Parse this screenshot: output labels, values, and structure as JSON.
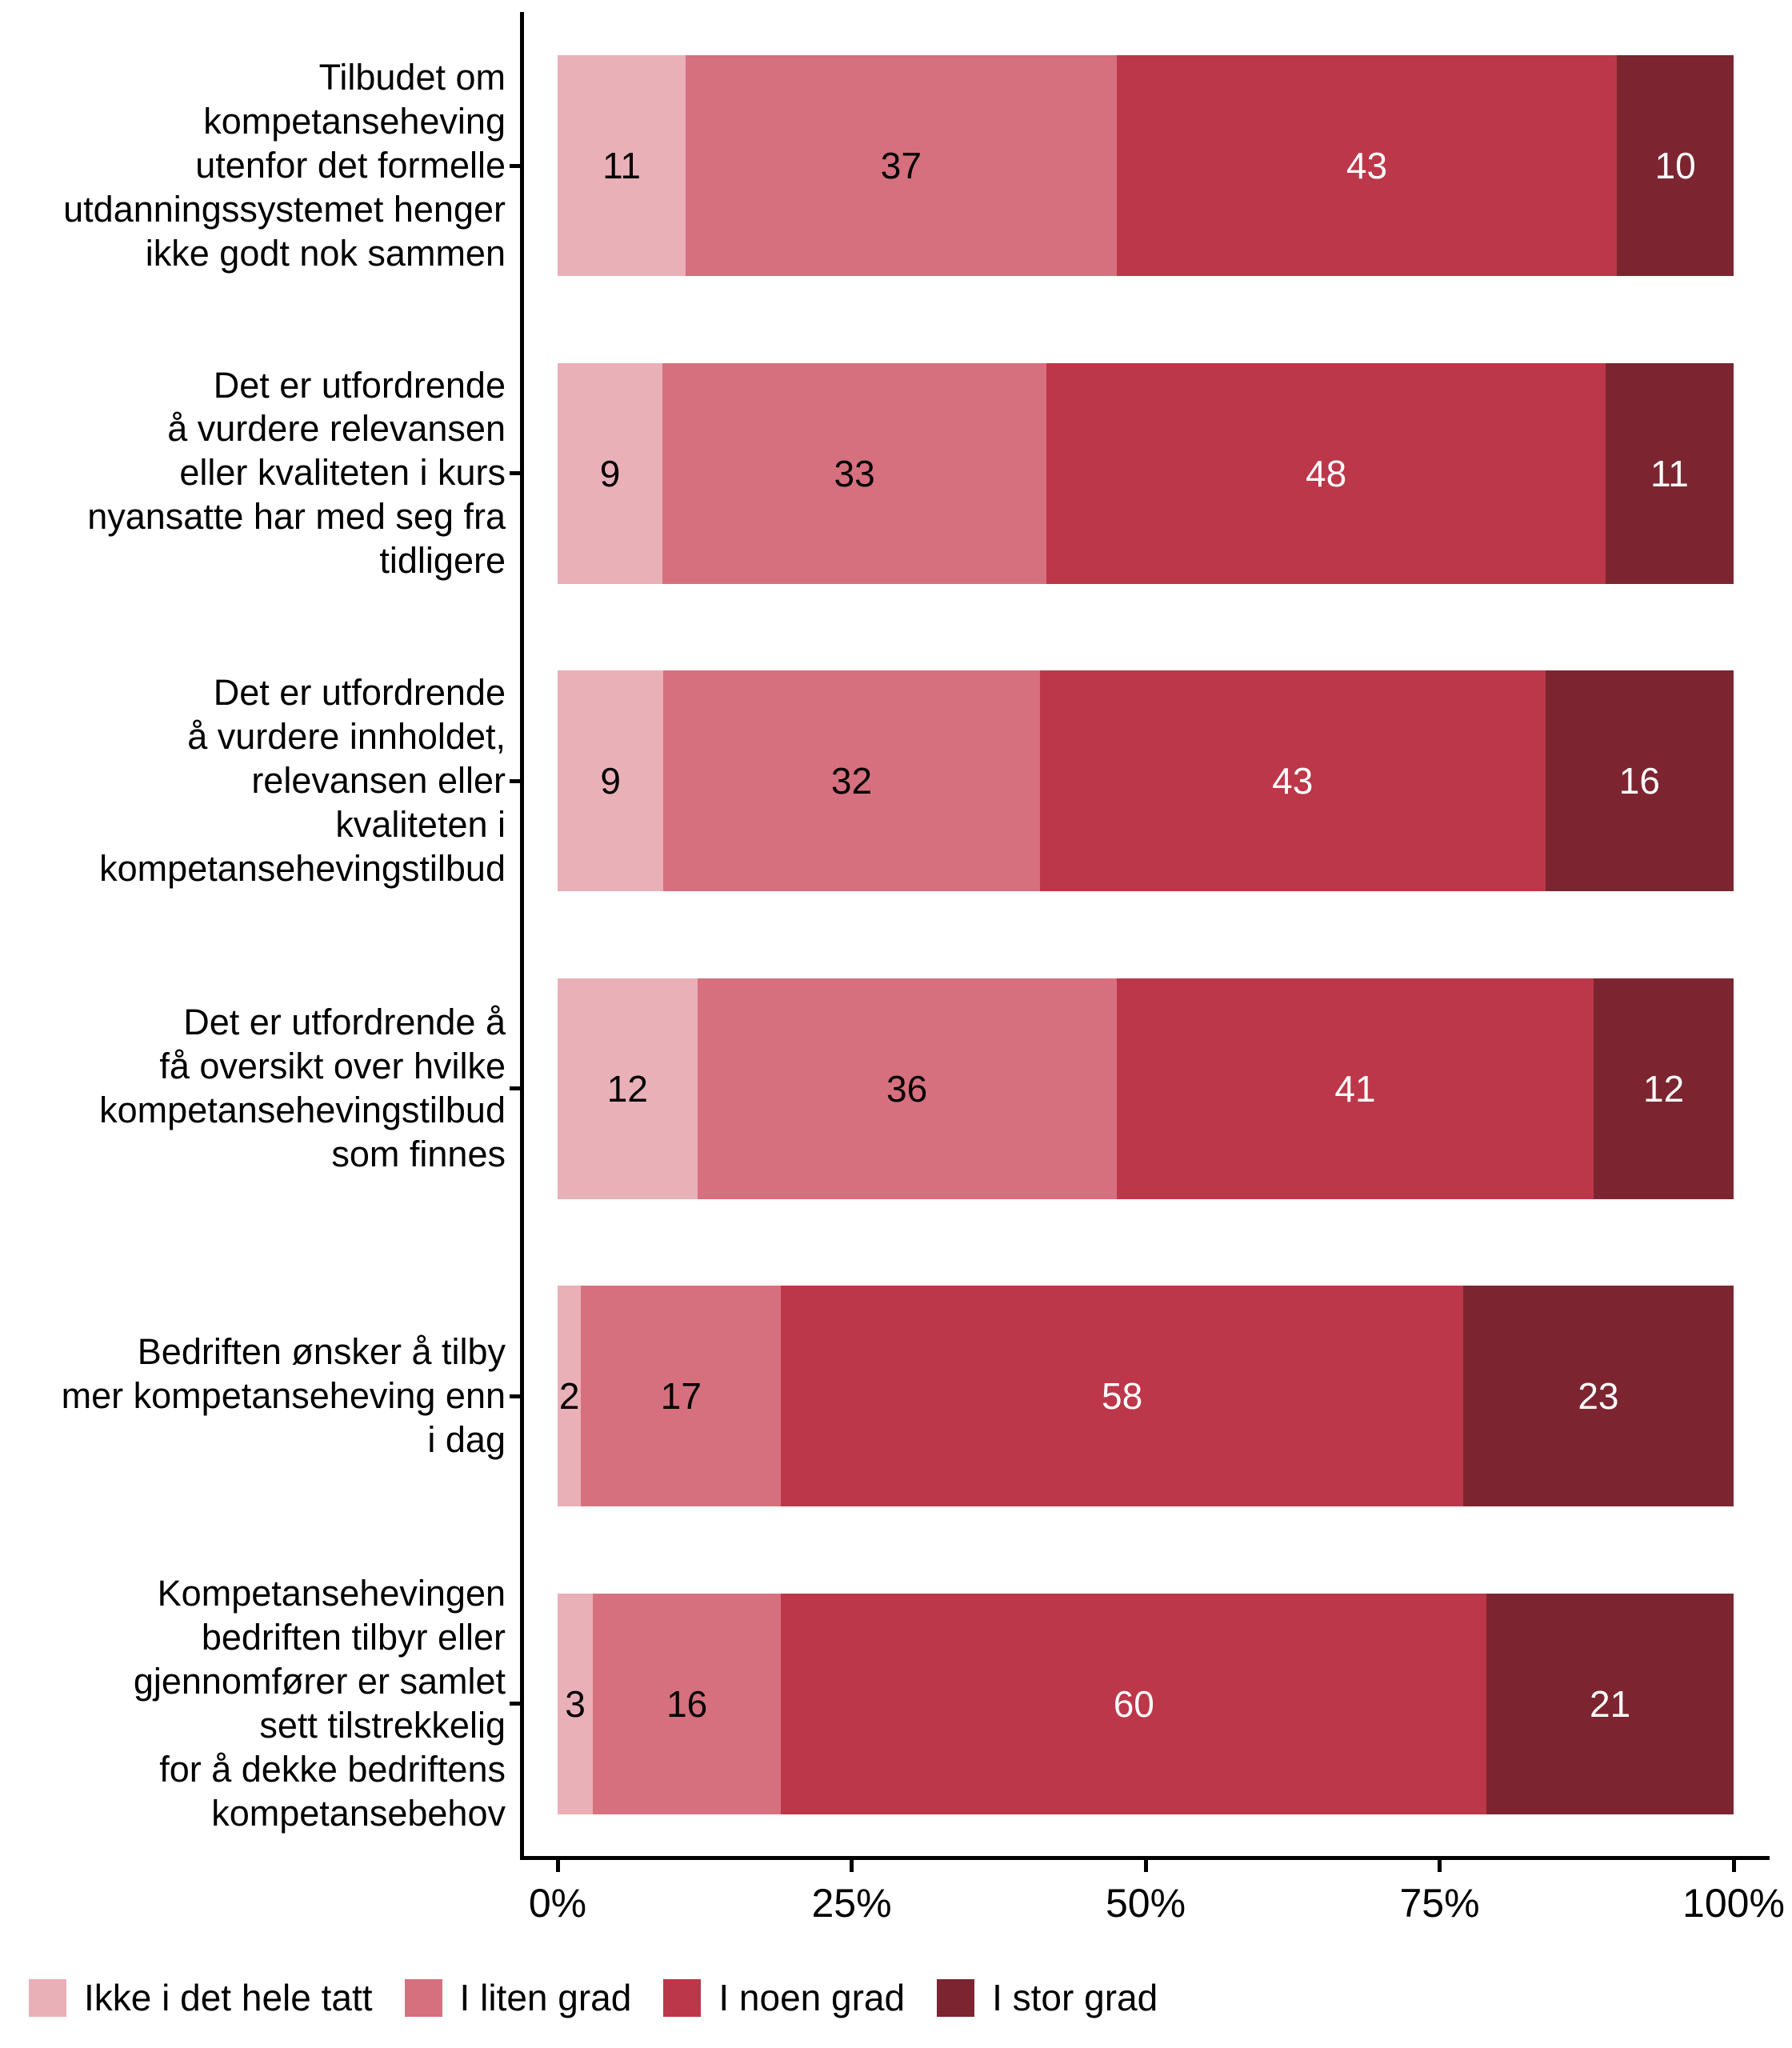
{
  "chart_data": {
    "type": "bar",
    "subtype": "horizontal-stacked-percent",
    "title": "",
    "xlabel": "",
    "ylabel": "",
    "xlim": [
      0,
      100
    ],
    "x_ticks": [
      "0%",
      "25%",
      "50%",
      "75%",
      "100%"
    ],
    "grid": false,
    "legend_position": "bottom-left",
    "axis_color": "#000000",
    "categories": [
      "Tilbudet om\nkompetanseheving\nutenfor det formelle\nutdanningssystemet henger\nikke godt nok sammen",
      "Det er utfordrende\nå vurdere relevansen\neller kvaliteten i kurs\nnyansatte har med seg fra\ntidligere",
      "Det er utfordrende\nå vurdere innholdet,\nrelevansen eller\nkvaliteten i\nkompetansehevingstilbud",
      "Det er utfordrende å\nfå oversikt over hvilke\nkompetansehevingstilbud\nsom finnes",
      "Bedriften ønsker å tilby\nmer kompetanseheving enn\ni dag",
      "Kompetansehevingen\nbedriften tilbyr eller\ngjennomfører er samlet\nsett tilstrekkelig\nfor å dekke bedriftens\nkompetansebehov"
    ],
    "series": [
      {
        "name": "Ikke i det hele tatt",
        "color": "#E9B0B8",
        "text_color": "#000000",
        "values": [
          11,
          9,
          9,
          12,
          2,
          3
        ]
      },
      {
        "name": "I liten grad",
        "color": "#D6707E",
        "text_color": "#000000",
        "values": [
          37,
          33,
          32,
          36,
          17,
          16
        ]
      },
      {
        "name": "I noen grad",
        "color": "#BC3749",
        "text_color": "#FFFFFF",
        "values": [
          43,
          48,
          43,
          41,
          58,
          60
        ]
      },
      {
        "name": "I stor grad",
        "color": "#7C2530",
        "text_color": "#FFFFFF",
        "values": [
          10,
          11,
          16,
          12,
          23,
          21
        ]
      }
    ]
  }
}
